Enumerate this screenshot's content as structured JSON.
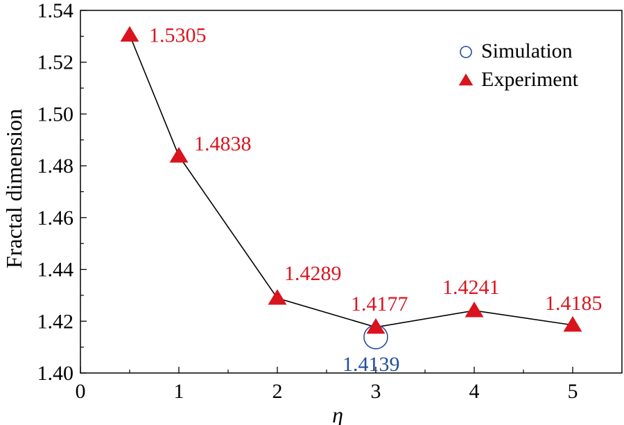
{
  "chart_data": {
    "type": "line",
    "title": "",
    "xlabel": "η",
    "ylabel": "Fractal dimension",
    "xlim": [
      0,
      5.5
    ],
    "ylim": [
      1.4,
      1.54
    ],
    "x_ticks": [
      {
        "value": 0,
        "label": "0"
      },
      {
        "value": 1,
        "label": "1"
      },
      {
        "value": 2,
        "label": "2"
      },
      {
        "value": 3,
        "label": "3"
      },
      {
        "value": 4,
        "label": "4"
      },
      {
        "value": 5,
        "label": "5"
      }
    ],
    "y_ticks": [
      {
        "value": 1.4,
        "label": "1.40"
      },
      {
        "value": 1.42,
        "label": "1.42"
      },
      {
        "value": 1.44,
        "label": "1.44"
      },
      {
        "value": 1.46,
        "label": "1.46"
      },
      {
        "value": 1.48,
        "label": "1.48"
      },
      {
        "value": 1.5,
        "label": "1.50"
      },
      {
        "value": 1.52,
        "label": "1.52"
      },
      {
        "value": 1.54,
        "label": "1.54"
      }
    ],
    "grid": false,
    "legend_position": "top-right",
    "series": [
      {
        "name": "Simulation",
        "marker": "open-circle",
        "color": "#1f4e9c",
        "points": [
          {
            "x": 3,
            "y": 1.4139,
            "label": "1.4139"
          }
        ]
      },
      {
        "name": "Experiment",
        "marker": "filled-triangle",
        "color": "#d9141e",
        "line_color": "#000000",
        "points": [
          {
            "x": 0.5,
            "y": 1.5305,
            "label": "1.5305"
          },
          {
            "x": 1,
            "y": 1.4838,
            "label": "1.4838"
          },
          {
            "x": 2,
            "y": 1.4289,
            "label": "1.4289"
          },
          {
            "x": 3,
            "y": 1.4177,
            "label": "1.4177"
          },
          {
            "x": 4,
            "y": 1.4241,
            "label": "1.4241"
          },
          {
            "x": 5,
            "y": 1.4185,
            "label": "1.4185"
          }
        ]
      }
    ]
  }
}
